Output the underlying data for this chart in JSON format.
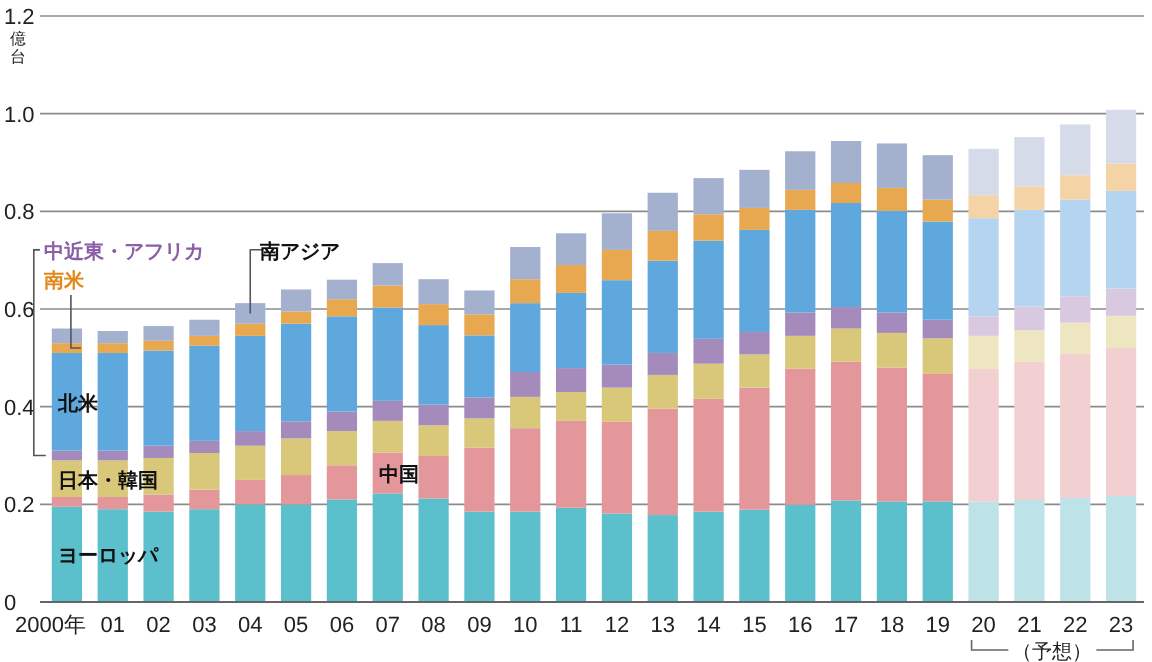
{
  "chart_data": {
    "type": "bar",
    "stacked": true,
    "ylabel": "億台",
    "categories": [
      "2000年",
      "01",
      "02",
      "03",
      "04",
      "05",
      "06",
      "07",
      "08",
      "09",
      "10",
      "11",
      "12",
      "13",
      "14",
      "15",
      "16",
      "17",
      "18",
      "19",
      "20",
      "21",
      "22",
      "23"
    ],
    "ylim": [
      0,
      1.2
    ],
    "yticks": [
      0,
      0.2,
      0.4,
      0.6,
      0.8,
      {
        "value": 1,
        "label": "1.0"
      },
      1.2
    ],
    "grid": "y",
    "annotations": [
      "（予想）"
    ],
    "series": [
      {
        "name": "ヨーロッパ",
        "colors": [
          "#5bc0cc",
          "#5bc0cc",
          "#5bc0cc",
          "#5bc0cc",
          "#5bc0cc",
          "#5bc0cc",
          "#5bc0cc",
          "#5bc0cc",
          "#5bc0cc",
          "#5bc0cc",
          "#5bc0cc",
          "#5bc0cc",
          "#5bc0cc",
          "#5bc0cc",
          "#5bc0cc",
          "#5bc0cc",
          "#5bc0cc",
          "#5bc0cc",
          "#5bc0cc",
          "#5bc0cc",
          "#bde3e8",
          "#bde3e8",
          "#bde3e8",
          "#bde3e8"
        ],
        "values": [
          0.195,
          0.19,
          0.185,
          0.19,
          0.2,
          0.2,
          0.21,
          0.222,
          0.212,
          0.185,
          0.185,
          0.193,
          0.181,
          0.178,
          0.185,
          0.189,
          0.199,
          0.208,
          0.206,
          0.206,
          0.206,
          0.209,
          0.213,
          0.217
        ]
      },
      {
        "name": "中国",
        "colors": [
          "#e3979a",
          "#e3979a",
          "#e3979a",
          "#e3979a",
          "#e3979a",
          "#e3979a",
          "#e3979a",
          "#e3979a",
          "#e3979a",
          "#e3979a",
          "#e3979a",
          "#e3979a",
          "#e3979a",
          "#e3979a",
          "#e3979a",
          "#e3979a",
          "#e3979a",
          "#e3979a",
          "#e3979a",
          "#e3979a",
          "#f2cfd0",
          "#f2cfd0",
          "#f2cfd0",
          "#f2cfd0"
        ],
        "values": [
          0.02,
          0.025,
          0.035,
          0.04,
          0.05,
          0.06,
          0.07,
          0.084,
          0.087,
          0.131,
          0.171,
          0.178,
          0.188,
          0.218,
          0.231,
          0.25,
          0.279,
          0.284,
          0.274,
          0.261,
          0.271,
          0.283,
          0.295,
          0.303
        ]
      },
      {
        "name": "日本・韓国",
        "colors": [
          "#d9c77a",
          "#d9c77a",
          "#d9c77a",
          "#d9c77a",
          "#d9c77a",
          "#d9c77a",
          "#d9c77a",
          "#d9c77a",
          "#d9c77a",
          "#d9c77a",
          "#d9c77a",
          "#d9c77a",
          "#d9c77a",
          "#d9c77a",
          "#d9c77a",
          "#d9c77a",
          "#d9c77a",
          "#d9c77a",
          "#d9c77a",
          "#d9c77a",
          "#eee6c0",
          "#eee6c0",
          "#eee6c0",
          "#eee6c0"
        ],
        "values": [
          0.075,
          0.075,
          0.075,
          0.075,
          0.07,
          0.075,
          0.07,
          0.065,
          0.063,
          0.06,
          0.064,
          0.059,
          0.07,
          0.069,
          0.072,
          0.068,
          0.067,
          0.068,
          0.071,
          0.073,
          0.068,
          0.065,
          0.064,
          0.066
        ]
      },
      {
        "name": "中近東・アフリカ",
        "colors": [
          "#a58bbb",
          "#a58bbb",
          "#a58bbb",
          "#a58bbb",
          "#a58bbb",
          "#a58bbb",
          "#a58bbb",
          "#a58bbb",
          "#a58bbb",
          "#a58bbb",
          "#a58bbb",
          "#a58bbb",
          "#a58bbb",
          "#a58bbb",
          "#a58bbb",
          "#a58bbb",
          "#a58bbb",
          "#a58bbb",
          "#a58bbb",
          "#a58bbb",
          "#d8c9e0",
          "#d8c9e0",
          "#d8c9e0",
          "#d8c9e0"
        ],
        "values": [
          0.02,
          0.02,
          0.025,
          0.025,
          0.03,
          0.035,
          0.04,
          0.041,
          0.042,
          0.043,
          0.051,
          0.049,
          0.047,
          0.045,
          0.051,
          0.046,
          0.048,
          0.044,
          0.042,
          0.038,
          0.04,
          0.048,
          0.054,
          0.056
        ]
      },
      {
        "name": "北米",
        "colors": [
          "#5fa8dd",
          "#5fa8dd",
          "#5fa8dd",
          "#5fa8dd",
          "#5fa8dd",
          "#5fa8dd",
          "#5fa8dd",
          "#5fa8dd",
          "#5fa8dd",
          "#5fa8dd",
          "#5fa8dd",
          "#5fa8dd",
          "#5fa8dd",
          "#5fa8dd",
          "#5fa8dd",
          "#5fa8dd",
          "#5fa8dd",
          "#5fa8dd",
          "#5fa8dd",
          "#5fa8dd",
          "#b5d4f0",
          "#b5d4f0",
          "#b5d4f0",
          "#b5d4f0"
        ],
        "values": [
          0.2,
          0.2,
          0.195,
          0.195,
          0.195,
          0.2,
          0.195,
          0.191,
          0.163,
          0.127,
          0.141,
          0.154,
          0.173,
          0.189,
          0.201,
          0.209,
          0.21,
          0.213,
          0.208,
          0.201,
          0.201,
          0.198,
          0.198,
          0.2
        ]
      },
      {
        "name": "南米",
        "colors": [
          "#e8a84f",
          "#e8a84f",
          "#e8a84f",
          "#e8a84f",
          "#e8a84f",
          "#e8a84f",
          "#e8a84f",
          "#e8a84f",
          "#e8a84f",
          "#e8a84f",
          "#e8a84f",
          "#e8a84f",
          "#e8a84f",
          "#e8a84f",
          "#e8a84f",
          "#e8a84f",
          "#e8a84f",
          "#e8a84f",
          "#e8a84f",
          "#e8a84f",
          "#f4d4a6",
          "#f4d4a6",
          "#f4d4a6",
          "#f4d4a6"
        ],
        "values": [
          0.02,
          0.02,
          0.02,
          0.02,
          0.025,
          0.025,
          0.035,
          0.045,
          0.043,
          0.043,
          0.049,
          0.057,
          0.062,
          0.061,
          0.054,
          0.045,
          0.041,
          0.041,
          0.047,
          0.045,
          0.047,
          0.048,
          0.05,
          0.056
        ]
      },
      {
        "name": "南アジア",
        "colors": [
          "#a3b1cf",
          "#a3b1cf",
          "#a3b1cf",
          "#a3b1cf",
          "#a3b1cf",
          "#a3b1cf",
          "#a3b1cf",
          "#a3b1cf",
          "#a3b1cf",
          "#a3b1cf",
          "#a3b1cf",
          "#a3b1cf",
          "#a3b1cf",
          "#a3b1cf",
          "#a3b1cf",
          "#a3b1cf",
          "#a3b1cf",
          "#a3b1cf",
          "#a3b1cf",
          "#a3b1cf",
          "#d5dbe8",
          "#d5dbe8",
          "#d5dbe8",
          "#d5dbe8"
        ],
        "values": [
          0.03,
          0.025,
          0.03,
          0.033,
          0.042,
          0.045,
          0.04,
          0.046,
          0.051,
          0.049,
          0.066,
          0.065,
          0.075,
          0.078,
          0.074,
          0.078,
          0.079,
          0.086,
          0.091,
          0.091,
          0.095,
          0.101,
          0.104,
          0.11
        ]
      }
    ]
  }
}
